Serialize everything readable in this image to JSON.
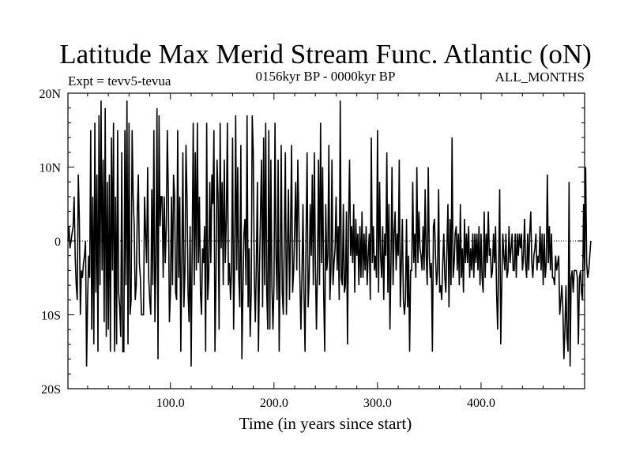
{
  "chart_data": {
    "type": "line",
    "title": "Latitude Max Merid Stream Func. Atlantic (oN)",
    "subtitle_left": "Expt = tevv5-tevua",
    "subtitle_center": "0156kyr BP - 0000kyr BP",
    "subtitle_right": "ALL_MONTHS",
    "xlabel": "Time (in years since start)",
    "ylabel": "",
    "xlim": [
      1,
      500
    ],
    "ylim": [
      -20,
      20
    ],
    "x_ticks": [
      100,
      200,
      300,
      400
    ],
    "x_tick_labels": [
      "100.0",
      "200.0",
      "300.0",
      "400.0"
    ],
    "y_ticks": [
      -20,
      -10,
      0,
      10,
      20
    ],
    "y_tick_labels": [
      "20S",
      "10S",
      "0",
      "10N",
      "20N"
    ],
    "zero_line": true,
    "grid": false,
    "legend": "none",
    "line_color": "#000000",
    "x_start": 1,
    "x_step": 1,
    "series": [
      {
        "values": [
          0,
          2,
          -1,
          0,
          1,
          2,
          6,
          -2,
          -6,
          -8,
          9,
          3,
          -10,
          -4,
          -5,
          -3,
          -2,
          0,
          -17,
          -8,
          -2,
          -5,
          15,
          -12,
          6,
          -14,
          16,
          -7,
          9,
          -15,
          17,
          -6,
          19,
          -4,
          11,
          -11,
          18,
          -13,
          8,
          -12,
          9,
          -15,
          14,
          -4,
          16,
          -15,
          6,
          -14,
          15,
          -7,
          -9,
          -13,
          12,
          -15,
          -15,
          15,
          -6,
          19,
          -14,
          16,
          -10,
          -8,
          15,
          6,
          2,
          -8,
          -6,
          4,
          9,
          -3,
          -5,
          -10,
          -10,
          -10,
          6,
          1,
          -3,
          10,
          -5,
          -8,
          -10,
          7,
          -6,
          15,
          -11,
          -3,
          18,
          -16,
          17,
          2,
          6,
          6,
          -5,
          6,
          -3,
          2,
          15,
          6,
          -11,
          -7,
          6,
          -6,
          9,
          6,
          -7,
          -8,
          15,
          -5,
          6,
          -15,
          -3,
          12,
          -9,
          -4,
          13,
          6,
          -7,
          -11,
          2,
          -17,
          -1,
          16,
          -6,
          12,
          -4,
          16,
          -3,
          6,
          -7,
          -10,
          -1,
          -3,
          2,
          -15,
          16,
          -8,
          -5,
          8,
          -3,
          9,
          5,
          15,
          -15,
          -5,
          11,
          6,
          -12,
          16,
          -1,
          8,
          -6,
          11,
          -3,
          3,
          16,
          -6,
          -3,
          -8,
          -4,
          14,
          -12,
          -3,
          17,
          -4,
          10,
          -5,
          -9,
          13,
          -16,
          -7,
          1,
          3,
          -6,
          17,
          -9,
          -1,
          -13,
          -7,
          17,
          12,
          -5,
          -11,
          -3,
          8,
          -15,
          -4,
          4,
          11,
          -9,
          14,
          -6,
          16,
          -7,
          -12,
          15,
          -12,
          11,
          -6,
          -12,
          -6,
          16,
          -2,
          -8,
          11,
          -15,
          -3,
          13,
          -7,
          -10,
          1,
          12,
          -10,
          -1,
          7,
          -8,
          1,
          13,
          -7,
          -4,
          2,
          8,
          -4,
          11,
          3,
          -5,
          -12,
          -5,
          5,
          -7,
          -15,
          1,
          12,
          -9,
          -5,
          5,
          -2,
          9,
          -6,
          12,
          -3,
          -12,
          -4,
          11,
          -6,
          16,
          -3,
          10,
          -7,
          -15,
          5,
          -4,
          -2,
          13,
          -8,
          -4,
          11,
          -6,
          -3,
          -1,
          6,
          -4,
          2,
          -8,
          19,
          -5,
          -6,
          5,
          -7,
          -6,
          4,
          -14,
          2,
          11,
          -2,
          2,
          -3,
          5,
          -7,
          3,
          -2,
          1,
          -6,
          2,
          -5,
          4,
          -5,
          1,
          -4,
          2,
          -6,
          -2,
          1,
          -8,
          14,
          -3,
          2,
          -4,
          -2,
          -5,
          15,
          -7,
          8,
          -2,
          -5,
          2,
          -8,
          1,
          -2,
          12,
          -7,
          5,
          -12,
          -3,
          10,
          -6,
          1,
          4,
          -4,
          1,
          -2,
          11,
          -9,
          -3,
          3,
          -8,
          -10,
          -8,
          3,
          -9,
          -2,
          -15,
          -4,
          -4,
          8,
          -3,
          1,
          -5,
          10,
          -3,
          4,
          -1,
          -2,
          -4,
          2,
          -4,
          7,
          -2,
          -6,
          10,
          -2,
          -5,
          -3,
          -15,
          2,
          3,
          -2,
          -6,
          -4,
          7,
          -7,
          -6,
          -8,
          -3,
          1,
          -5,
          -7,
          -1,
          5,
          -9,
          3,
          -6,
          14,
          -5,
          -3,
          1,
          2,
          -4,
          1,
          -6,
          5,
          -5,
          -1,
          -7,
          3,
          -3,
          1,
          -3,
          2,
          -5,
          -1,
          -4,
          1,
          -5,
          1,
          -3,
          1,
          -4,
          2,
          -6,
          1,
          -5,
          -7,
          4,
          -5,
          1,
          -3,
          4,
          -2,
          -1,
          -5,
          -4,
          1,
          -3,
          2,
          -7,
          -12,
          -3,
          7,
          -14,
          -6,
          1,
          -2,
          -4,
          1,
          -5,
          -4,
          2,
          -3,
          -1,
          1,
          -4,
          -4,
          1,
          -5,
          1,
          -2,
          1,
          -1,
          1,
          -4,
          -2,
          3,
          -3,
          -5,
          1,
          -4,
          1,
          4,
          -3,
          -5,
          -2,
          -1,
          1,
          -4,
          -2,
          -3,
          2,
          -4,
          1,
          -6,
          1,
          -5,
          -3,
          9,
          -3,
          2,
          -4,
          1,
          -5,
          -5,
          -6,
          -2,
          -4,
          -3,
          -2,
          -10,
          -8,
          -6,
          -9,
          -16,
          -12,
          -6,
          -13,
          -15,
          8,
          -17,
          -5,
          -4,
          -7,
          -4,
          -4,
          -4,
          -5,
          -14,
          -5,
          -4,
          -7,
          -8,
          5,
          -4,
          10,
          -3,
          -5,
          -4,
          -2,
          0
        ]
      }
    ]
  }
}
